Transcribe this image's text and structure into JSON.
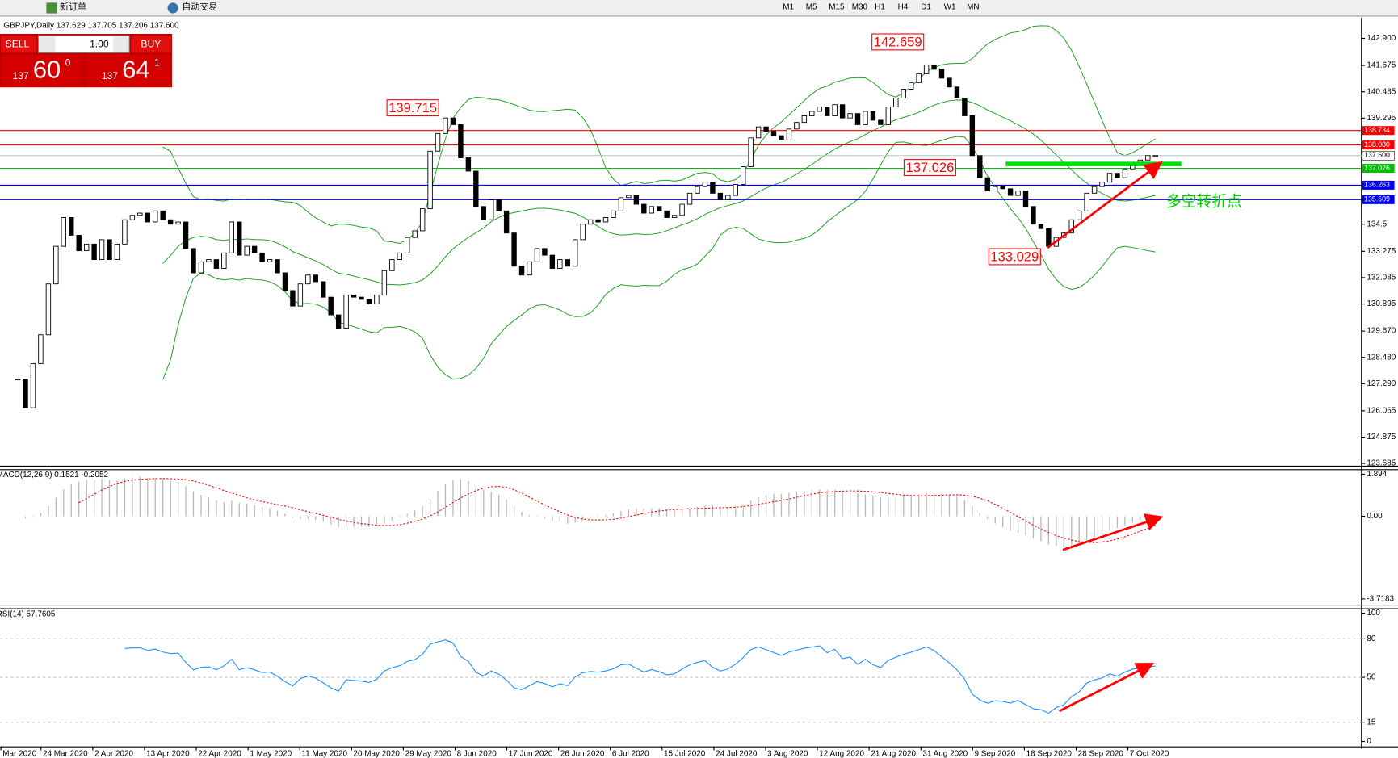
{
  "toolbar": {
    "new_order": "新订单",
    "auto_trading": "自动交易",
    "timeframes": [
      "M1",
      "M5",
      "M15",
      "M30",
      "H1",
      "H4",
      "D1",
      "W1",
      "MN"
    ]
  },
  "trade_panel": {
    "sell": "SELL",
    "lots": "1.00",
    "buy": "BUY",
    "bid_big": "137",
    "bid_pips": "60",
    "bid_frac": "0",
    "ask_big": "137",
    "ask_pips": "64",
    "ask_frac": "1"
  },
  "chart_data": [
    {
      "type": "candlestick",
      "title": "GBPJPY,Daily  137.629 137.705 137.206 137.600",
      "close": [
        127.5,
        126.2,
        128.2,
        129.5,
        131.8,
        133.5,
        134.8,
        134.0,
        133.3,
        133.6,
        132.9,
        133.8,
        132.9,
        133.6,
        134.7,
        134.9,
        135.0,
        134.6,
        135.1,
        134.7,
        134.5,
        134.6,
        133.4,
        132.3,
        132.8,
        132.9,
        132.5,
        133.2,
        134.6,
        133.1,
        133.5,
        133.2,
        132.8,
        132.9,
        132.3,
        131.5,
        130.8,
        131.8,
        132.2,
        131.9,
        131.2,
        130.4,
        129.8,
        131.3,
        131.2,
        131.1,
        130.9,
        131.3,
        132.4,
        132.9,
        133.2,
        133.9,
        134.2,
        135.2,
        137.8,
        138.6,
        139.3,
        139.0,
        137.5,
        136.9,
        135.3,
        134.7,
        135.6,
        135.1,
        134.1,
        132.6,
        132.2,
        132.8,
        133.4,
        133.1,
        132.5,
        132.9,
        132.6,
        133.8,
        134.5,
        134.7,
        134.6,
        134.8,
        135.1,
        135.7,
        135.8,
        135.4,
        135.0,
        135.3,
        135.1,
        134.8,
        134.9,
        135.4,
        135.9,
        136.2,
        136.4,
        135.9,
        135.6,
        135.8,
        136.3,
        137.1,
        138.4,
        138.9,
        138.7,
        138.5,
        138.3,
        138.8,
        139.1,
        139.4,
        139.6,
        139.8,
        139.4,
        139.9,
        139.3,
        139.5,
        139.0,
        139.6,
        139.2,
        139.0,
        139.8,
        140.2,
        140.6,
        140.9,
        141.3,
        141.7,
        141.5,
        141.1,
        140.7,
        140.2,
        139.4,
        137.6,
        136.6,
        136.0,
        136.2,
        136.1,
        135.8,
        136.0,
        135.3,
        134.5,
        134.3,
        133.5,
        133.9,
        134.1,
        134.7,
        135.1,
        135.9,
        136.2,
        136.4,
        136.8,
        136.6,
        137.0,
        137.3,
        137.4,
        137.6,
        137.6
      ],
      "ylim": [
        123.685,
        142.9
      ],
      "yticks": [
        {
          "value": 142.9,
          "label": "142.900"
        },
        141.675,
        140.485,
        139.295,
        134.5,
        133.275,
        132.085,
        130.895,
        {
          "value": 129.67,
          "label": "129.670"
        },
        {
          "value": 128.48,
          "label": "128.480"
        },
        {
          "value": 127.29,
          "label": "127.290"
        },
        126.065,
        124.875,
        123.685
      ],
      "levels": [
        {
          "value": 138.734,
          "color": "#ff0000"
        },
        {
          "value": {
            "value": 138.08,
            "label": "138.080"
          },
          "color": "#ff0000"
        },
        {
          "value": {
            "value": 137.6,
            "label": "137.600"
          },
          "color": "#c0c0c0"
        },
        {
          "value": 137.026,
          "color": "#00c000"
        },
        {
          "value": 136.263,
          "color": "#0000ff"
        },
        {
          "value": 135.609,
          "color": "#0000ff"
        }
      ],
      "annotations": [
        "142.659",
        "139.715",
        "137.026",
        "133.029"
      ],
      "note": "多空转折点",
      "x_labels": [
        "Mar 2020",
        "24 Mar 2020",
        "2 Apr 2020",
        "13 Apr 2020",
        "22 Apr 2020",
        "1 May 2020",
        "11 May 2020",
        "20 May 2020",
        "29 May 2020",
        "8 Jun 2020",
        "17 Jun 2020",
        "26 Jun 2020",
        "6 Jul 2020",
        "15 Jul 2020",
        "24 Jul 2020",
        "3 Aug 2020",
        "12 Aug 2020",
        "21 Aug 2020",
        "31 Aug 2020",
        "9 Sep 2020",
        "18 Sep 2020",
        "28 Sep 2020",
        "7 Oct 2020"
      ]
    },
    {
      "type": "macd",
      "title": "MACD(12,26,9) 0.1521 -0.2052",
      "ylim": [
        -3.7183,
        1.894
      ],
      "yticks": [
        1.894,
        {
          "value": 0,
          "label": "0.00"
        },
        -3.7183
      ]
    },
    {
      "type": "rsi",
      "title": "RSI(14) 57.7605",
      "ylim": [
        0,
        100
      ],
      "yticks": [
        100,
        80,
        50,
        15,
        0
      ]
    }
  ]
}
